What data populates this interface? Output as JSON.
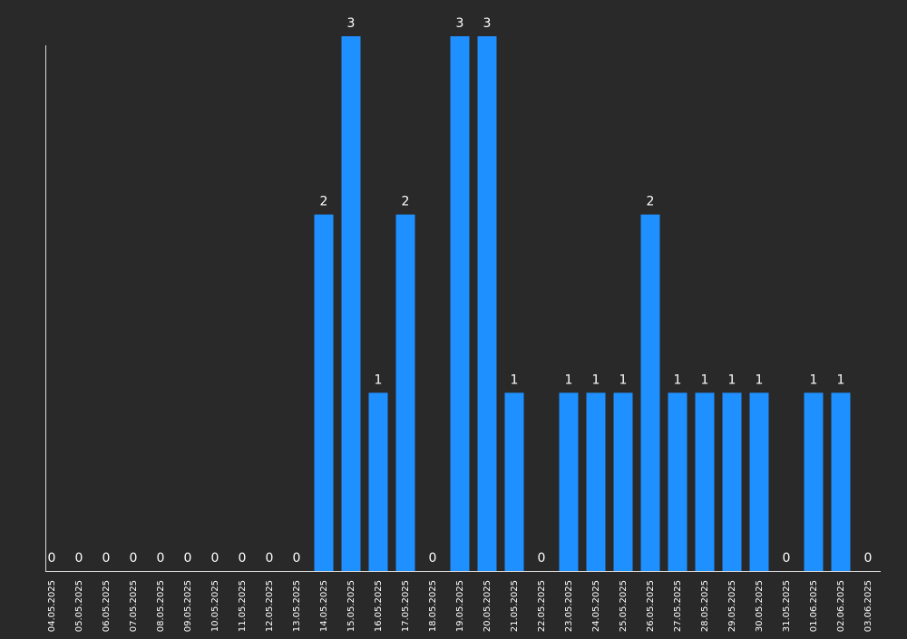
{
  "chart_data": {
    "type": "bar",
    "title": "",
    "xlabel": "",
    "ylabel": "",
    "categories": [
      "04.05.2025",
      "05.05.2025",
      "06.05.2025",
      "07.05.2025",
      "08.05.2025",
      "09.05.2025",
      "10.05.2025",
      "11.05.2025",
      "12.05.2025",
      "13.05.2025",
      "14.05.2025",
      "15.05.2025",
      "16.05.2025",
      "17.05.2025",
      "18.05.2025",
      "19.05.2025",
      "20.05.2025",
      "21.05.2025",
      "22.05.2025",
      "23.05.2025",
      "24.05.2025",
      "25.05.2025",
      "26.05.2025",
      "27.05.2025",
      "28.05.2025",
      "29.05.2025",
      "30.05.2025",
      "31.05.2025",
      "01.06.2025",
      "02.06.2025",
      "03.06.2025"
    ],
    "values": [
      0,
      0,
      0,
      0,
      0,
      0,
      0,
      0,
      0,
      0,
      2,
      3,
      1,
      2,
      0,
      3,
      3,
      1,
      0,
      1,
      1,
      1,
      2,
      1,
      1,
      1,
      1,
      0,
      1,
      1,
      0
    ],
    "ylim": [
      0,
      3
    ],
    "grid": false,
    "legend": "none",
    "bar_color": "#1e90ff",
    "axis_color": "#d9d9d9",
    "label_color": "#ffffff",
    "background": "#292929"
  }
}
